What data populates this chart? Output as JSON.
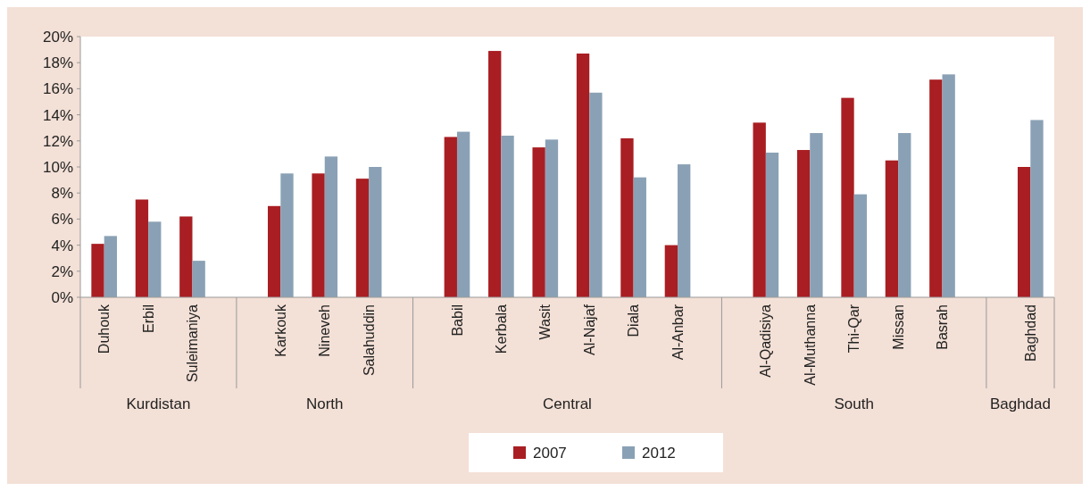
{
  "chart_data": {
    "type": "bar",
    "categories": [
      "Duhouk",
      "Erbil",
      "Suleimaniya",
      null,
      "Karkouk",
      "Nineveh",
      "Salahuddin",
      null,
      "Babil",
      "Kerbala",
      "Wasit",
      "Al-Najaf",
      "Diala",
      "Al-Anbar",
      null,
      "Al-Qadisiya",
      "Al-Muthanna",
      "Thi-Qar",
      "Missan",
      "Basrah",
      null,
      "Baghdad"
    ],
    "series": [
      {
        "name": "2007",
        "color": "#a91e22",
        "values": [
          4.1,
          7.5,
          6.2,
          null,
          7.0,
          9.5,
          9.1,
          null,
          12.3,
          18.9,
          11.5,
          18.7,
          12.2,
          4.0,
          null,
          13.4,
          11.3,
          15.3,
          10.5,
          16.7,
          null,
          10.0
        ]
      },
      {
        "name": "2012",
        "color": "#8aa1b5",
        "values": [
          4.7,
          5.8,
          2.8,
          null,
          9.5,
          10.8,
          10.0,
          null,
          12.7,
          12.4,
          12.1,
          15.7,
          9.2,
          10.2,
          null,
          11.1,
          12.6,
          7.9,
          12.6,
          17.1,
          null,
          13.6
        ]
      }
    ],
    "ylim": [
      0,
      20
    ],
    "yticks": [
      {
        "value": 0,
        "label": "0%"
      },
      {
        "value": 2,
        "label": "2%"
      },
      {
        "value": 4,
        "label": "4%"
      },
      {
        "value": 6,
        "label": "6%"
      },
      {
        "value": 8,
        "label": "8%"
      },
      {
        "value": 10,
        "label": "10%"
      },
      {
        "value": 12,
        "label": "12%"
      },
      {
        "value": 14,
        "label": "14%"
      },
      {
        "value": 16,
        "label": "16%"
      },
      {
        "value": 18,
        "label": "18%"
      },
      {
        "value": 20,
        "label": "20%"
      }
    ],
    "annotations": [
      "Kurdistan",
      "North",
      "Central",
      "South",
      "Baghdad"
    ],
    "legend": "bottom",
    "grid": false
  }
}
